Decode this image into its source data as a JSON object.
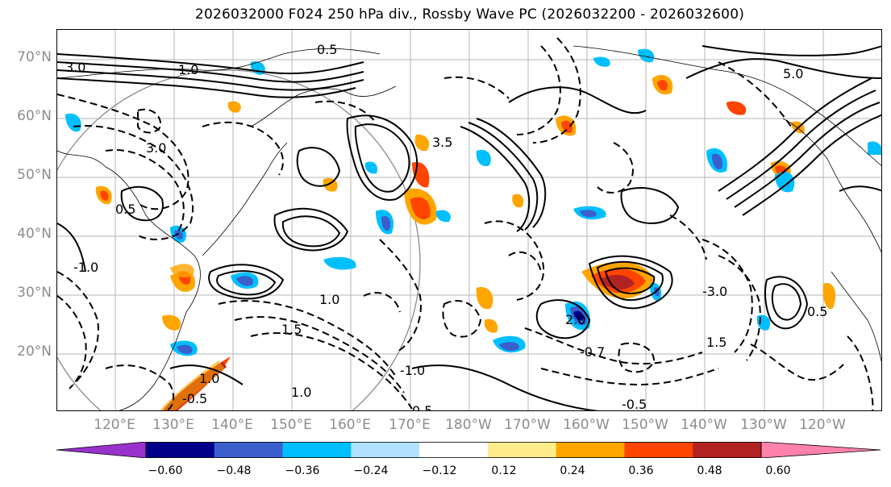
{
  "title": "2026032000 F024 250 hPa div., Rossby Wave PC (2026032200 - 2026032600)",
  "map": {
    "lat_labels": [
      "70°N",
      "60°N",
      "50°N",
      "40°N",
      "30°N",
      "20°N"
    ],
    "lon_labels": [
      "120°E",
      "130°E",
      "140°E",
      "150°E",
      "160°E",
      "170°E",
      "180°W",
      "170°W",
      "160°W",
      "150°W",
      "140°W",
      "130°W",
      "120°W"
    ],
    "contour_labels": [
      "3.0",
      "1.0",
      "0.5",
      "2.0",
      "5.0",
      "1.5",
      "3.5",
      "-0.5",
      "-1.0",
      "-1.5",
      "-3.0",
      "-0.7"
    ]
  },
  "colorbar": {
    "colors": [
      "#9932cc",
      "#00008b",
      "#3a5fcd",
      "#00bfff",
      "#b0e2ff",
      "#ffffff",
      "#ffec8b",
      "#ffa500",
      "#ff4500",
      "#b22222",
      "#ff82ab"
    ],
    "tick_labels": [
      "−0.60",
      "−0.48",
      "−0.36",
      "−0.24",
      "−0.12",
      "0.12",
      "0.24",
      "0.36",
      "0.48",
      "0.60"
    ]
  }
}
